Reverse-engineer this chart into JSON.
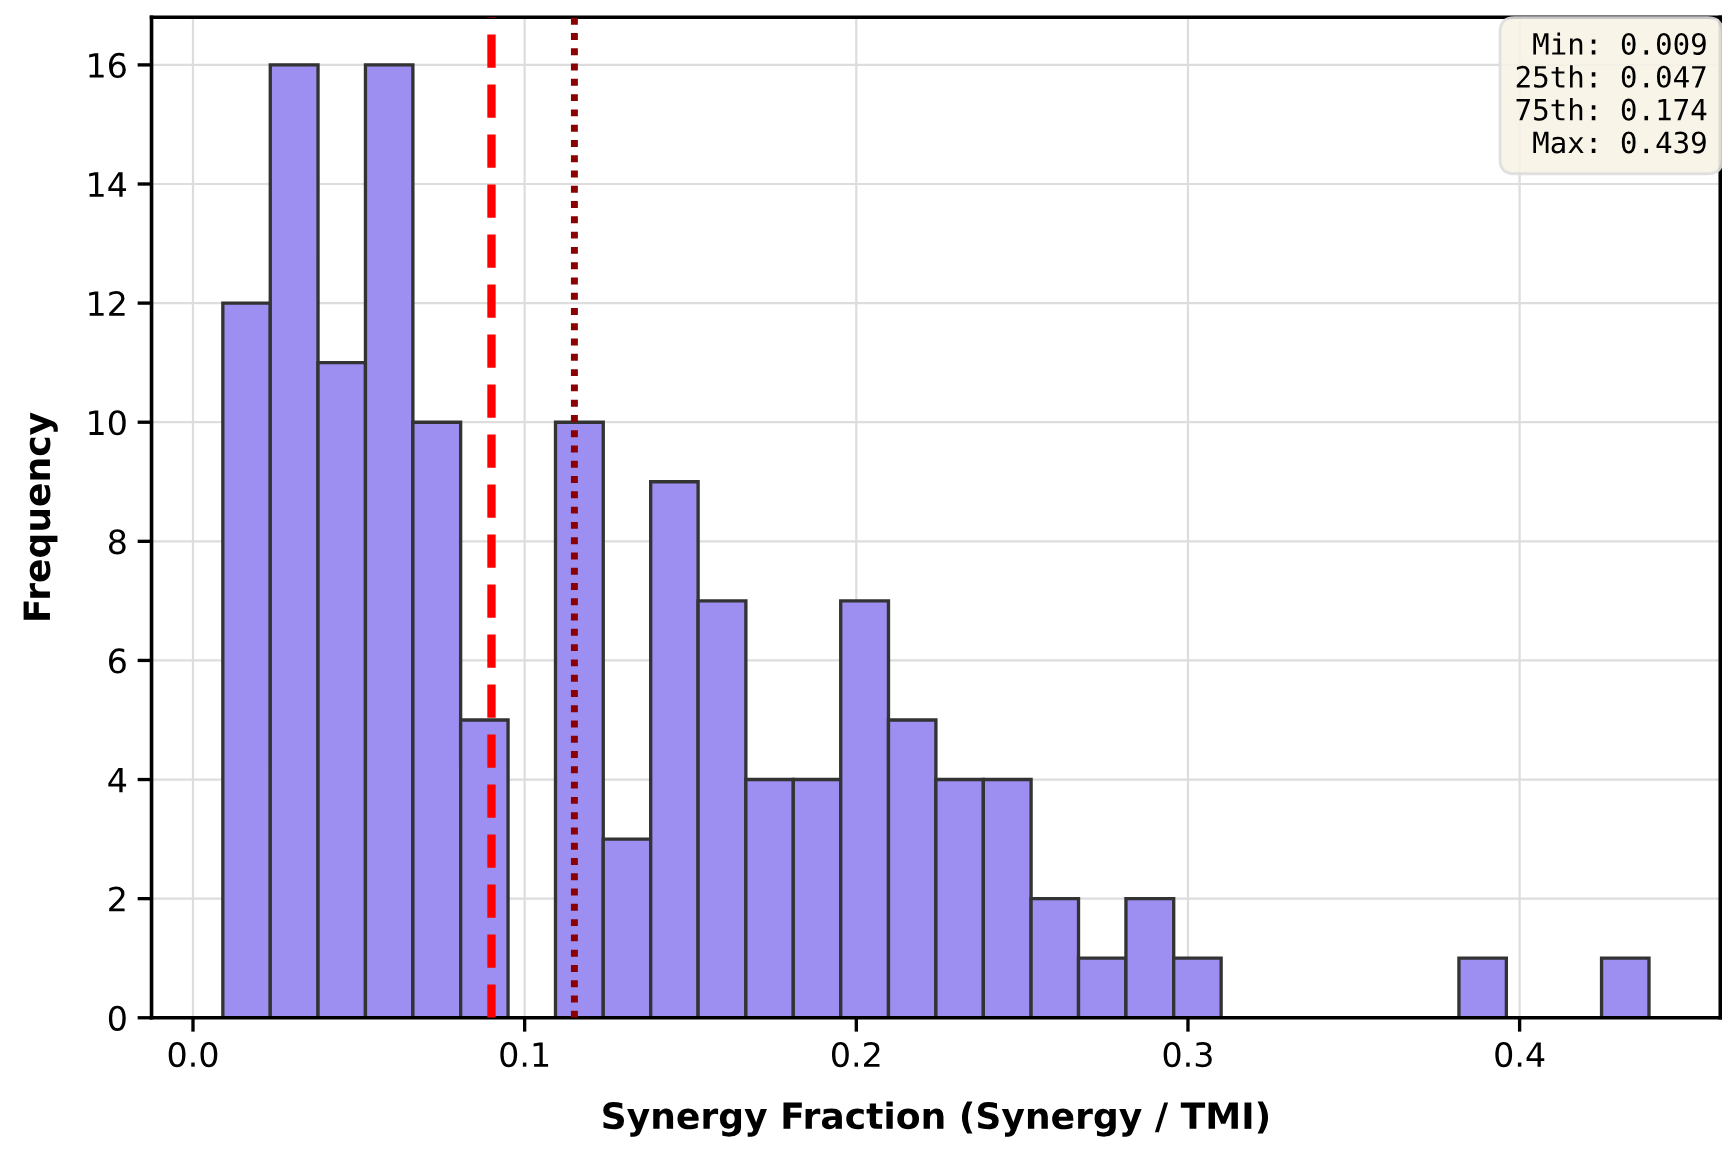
{
  "chart_data": {
    "type": "histogram",
    "xlabel": "Synergy Fraction (Synergy / TMI)",
    "ylabel": "Frequency",
    "bins": [
      0.009,
      0.0233,
      0.0377,
      0.052,
      0.0663,
      0.0807,
      0.095,
      0.1093,
      0.1237,
      0.138,
      0.1523,
      0.1667,
      0.181,
      0.1953,
      0.2097,
      0.224,
      0.2383,
      0.2527,
      0.267,
      0.2813,
      0.2957,
      0.31,
      0.3243,
      0.3387,
      0.353,
      0.3673,
      0.3817,
      0.396,
      0.4103,
      0.4247,
      0.439
    ],
    "values": [
      12,
      16,
      11,
      16,
      10,
      5,
      0,
      10,
      3,
      9,
      7,
      4,
      4,
      7,
      5,
      4,
      4,
      2,
      1,
      2,
      1,
      0,
      0,
      0,
      0,
      0,
      1,
      0,
      0,
      1
    ],
    "color": "#9d8ff1",
    "xlim": [
      -0.0125,
      0.4605
    ],
    "ylim": [
      0,
      16.8
    ],
    "xticks": [
      {
        "value": 0,
        "label": "0.0"
      },
      0.1,
      0.2,
      0.3,
      0.4
    ],
    "yticks": [
      0,
      2,
      4,
      6,
      8,
      10,
      12,
      14,
      16
    ],
    "grid": true,
    "legend": false,
    "ref_lines": [
      {
        "axis": "x",
        "value": 0.09,
        "color": "#ff0000",
        "line_style": "dashed"
      },
      {
        "axis": "x",
        "value": 0.115,
        "color": "#8b0000",
        "line_style": "dotted"
      }
    ],
    "annotations": [
      "Min: 0.009",
      "25th: 0.047",
      "75th: 0.174",
      "Max: 0.439"
    ]
  }
}
